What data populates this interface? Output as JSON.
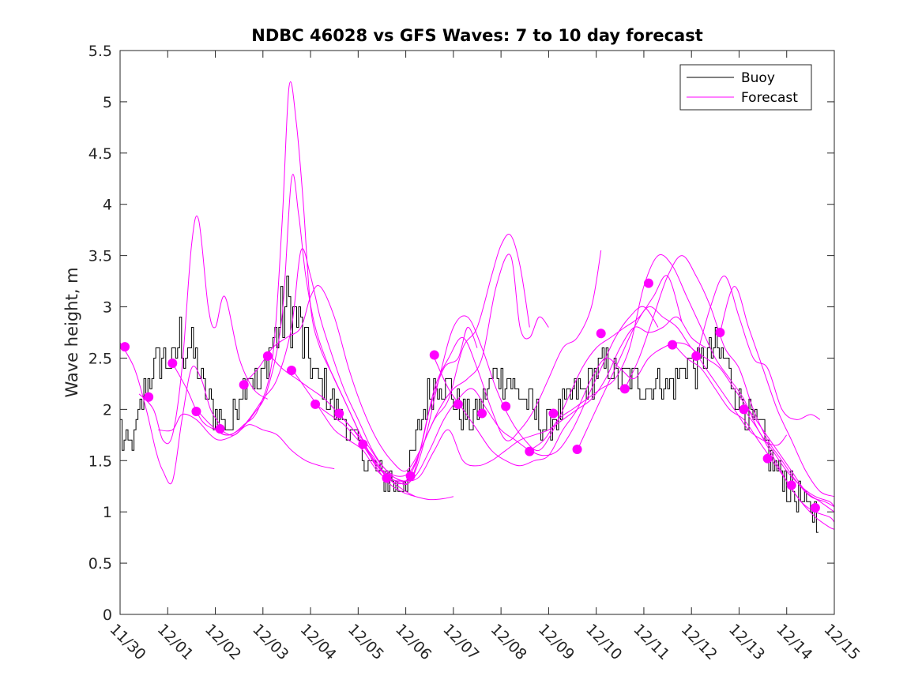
{
  "chart_data": {
    "type": "line",
    "title": "NDBC 46028 vs GFS Waves: 7 to 10 day forecast",
    "xlabel": "",
    "ylabel": "Wave height, m",
    "xlim": [
      0,
      15
    ],
    "ylim": [
      0,
      5.5
    ],
    "x_tick_values": [
      0,
      1,
      2,
      3,
      4,
      5,
      6,
      7,
      8,
      9,
      10,
      11,
      12,
      13,
      14,
      15
    ],
    "x_tick_labels": [
      "11/30",
      "12/01",
      "12/02",
      "12/03",
      "12/04",
      "12/05",
      "12/06",
      "12/07",
      "12/08",
      "12/09",
      "12/10",
      "12/11",
      "12/12",
      "12/13",
      "12/14",
      "12/15"
    ],
    "y_ticks": [
      0,
      0.5,
      1,
      1.5,
      2,
      2.5,
      3,
      3.5,
      4,
      4.5,
      5,
      5.5
    ],
    "y_tick_labels": [
      "0",
      "0.5",
      "1",
      "1.5",
      "2",
      "2.5",
      "3",
      "3.5",
      "4",
      "4.5",
      "5",
      "5.5"
    ],
    "legend": {
      "placement": "top-right",
      "entries": [
        {
          "name": "Buoy",
          "color": "#000000"
        },
        {
          "name": "Forecast",
          "color": "#ff00ff"
        }
      ]
    },
    "colors": {
      "buoy": "#000000",
      "forecast": "#ff00ff"
    },
    "buoy_anchor": {
      "x": [
        0.0,
        0.1,
        0.3,
        0.5,
        0.7,
        0.9,
        1.0,
        1.15,
        1.3,
        1.5,
        1.7,
        1.9,
        2.1,
        2.3,
        2.5,
        2.7,
        2.9,
        3.1,
        3.3,
        3.5,
        3.7,
        3.9,
        4.1,
        4.3,
        4.5,
        4.7,
        4.9,
        5.1,
        5.3,
        5.5,
        5.7,
        5.9,
        6.1,
        6.3,
        6.5,
        6.7,
        6.9,
        7.1,
        7.3,
        7.5,
        7.7,
        7.9,
        8.1,
        8.3,
        8.5,
        8.7,
        8.9,
        9.1,
        9.3,
        9.5,
        9.7,
        9.9,
        10.1,
        10.3,
        10.5,
        10.7,
        10.9,
        11.1,
        11.3,
        11.5,
        11.7,
        11.9,
        12.1,
        12.3,
        12.5,
        12.7,
        12.9,
        13.1,
        13.3,
        13.5,
        13.7,
        13.9,
        14.1,
        14.3,
        14.5,
        14.7
      ],
      "y": [
        1.8,
        1.6,
        1.7,
        2.2,
        2.4,
        2.5,
        2.45,
        2.5,
        2.7,
        2.6,
        2.3,
        2.0,
        1.9,
        1.8,
        2.2,
        2.4,
        2.2,
        2.5,
        2.8,
        3.0,
        2.9,
        2.6,
        2.3,
        2.2,
        2.0,
        1.9,
        1.7,
        1.55,
        1.4,
        1.35,
        1.3,
        1.25,
        1.5,
        1.9,
        2.2,
        2.3,
        2.2,
        2.0,
        1.9,
        1.95,
        2.2,
        2.35,
        2.3,
        2.2,
        2.1,
        1.95,
        1.8,
        1.9,
        2.0,
        2.1,
        2.2,
        2.3,
        2.45,
        2.4,
        2.3,
        2.35,
        2.25,
        2.2,
        2.3,
        2.2,
        2.3,
        2.5,
        2.4,
        2.5,
        2.6,
        2.5,
        2.2,
        2.0,
        1.9,
        1.7,
        1.5,
        1.35,
        1.2,
        1.1,
        1.0,
        1.0
      ]
    },
    "forecasts": [
      {
        "name": "run1",
        "x": [
          0.0,
          0.3,
          0.55,
          0.75,
          0.9,
          1.1,
          1.3,
          1.5,
          1.7,
          1.9,
          2.1
        ],
        "y": [
          2.65,
          2.4,
          2.0,
          1.6,
          1.4,
          1.3,
          1.9,
          2.4,
          2.3,
          2.0,
          1.85
        ]
      },
      {
        "name": "run2",
        "x": [
          0.4,
          0.7,
          0.9,
          1.1,
          1.3,
          1.5,
          1.65,
          1.85,
          2.0,
          2.2,
          2.5,
          2.8,
          3.1
        ],
        "y": [
          2.15,
          2.0,
          1.7,
          1.75,
          2.4,
          3.6,
          3.85,
          3.0,
          2.8,
          3.1,
          2.5,
          2.2,
          2.1
        ]
      },
      {
        "name": "run3",
        "x": [
          0.8,
          1.1,
          1.3,
          1.6,
          1.9,
          2.1,
          2.4,
          2.7,
          3.0,
          3.3,
          3.6,
          3.9,
          4.2,
          4.5
        ],
        "y": [
          1.8,
          1.8,
          1.95,
          1.9,
          1.75,
          1.7,
          1.75,
          1.85,
          1.8,
          1.75,
          1.6,
          1.5,
          1.45,
          1.42
        ]
      },
      {
        "name": "run4",
        "x": [
          1.1,
          1.4,
          1.7,
          2.0,
          2.3,
          2.6,
          2.9,
          3.2,
          3.4,
          3.55,
          3.7,
          3.85,
          4.0,
          4.2,
          4.5,
          4.8,
          5.1,
          5.4,
          5.7,
          6.0,
          6.2
        ],
        "y": [
          2.45,
          2.2,
          1.9,
          1.8,
          1.75,
          1.85,
          2.0,
          2.5,
          3.8,
          5.15,
          4.8,
          4.0,
          3.0,
          2.6,
          2.3,
          2.0,
          1.7,
          1.45,
          1.3,
          1.2,
          1.15
        ]
      },
      {
        "name": "run5",
        "x": [
          1.6,
          1.9,
          2.2,
          2.5,
          2.8,
          3.1,
          3.4,
          3.6,
          3.75,
          3.9,
          4.1,
          4.4,
          4.7,
          5.0,
          5.3,
          5.6,
          5.9,
          6.2,
          6.5,
          6.8,
          7.0
        ],
        "y": [
          2.0,
          1.85,
          1.75,
          1.8,
          1.95,
          2.2,
          2.9,
          4.25,
          3.9,
          3.3,
          2.8,
          2.4,
          2.1,
          1.8,
          1.5,
          1.3,
          1.2,
          1.15,
          1.12,
          1.13,
          1.15
        ]
      },
      {
        "name": "run6",
        "x": [
          2.1,
          2.4,
          2.7,
          3.0,
          3.3,
          3.6,
          3.8,
          4.0,
          4.2,
          4.4,
          4.7,
          5.0,
          5.3,
          5.6,
          5.9,
          6.1,
          6.3,
          6.5,
          6.8,
          7.1,
          7.3,
          7.5
        ],
        "y": [
          1.8,
          1.75,
          1.9,
          2.1,
          2.3,
          2.8,
          3.55,
          3.3,
          2.9,
          2.6,
          2.2,
          1.9,
          1.6,
          1.4,
          1.3,
          1.3,
          1.6,
          2.0,
          2.4,
          2.5,
          2.8,
          2.6
        ]
      },
      {
        "name": "run7",
        "x": [
          2.6,
          2.9,
          3.2,
          3.5,
          3.8,
          4.0,
          4.2,
          4.5,
          4.8,
          5.1,
          5.4,
          5.7,
          6.0,
          6.3,
          6.6,
          6.9,
          7.2,
          7.5,
          7.8,
          8.0,
          8.2,
          8.4,
          8.6
        ],
        "y": [
          2.25,
          2.4,
          2.6,
          2.7,
          2.8,
          3.1,
          3.2,
          2.9,
          2.4,
          2.0,
          1.7,
          1.5,
          1.4,
          1.6,
          1.9,
          2.1,
          2.6,
          2.8,
          3.3,
          3.6,
          3.7,
          3.4,
          2.8
        ]
      },
      {
        "name": "run8",
        "x": [
          3.1,
          3.4,
          3.7,
          4.0,
          4.3,
          4.6,
          4.9,
          5.2,
          5.5,
          5.8,
          6.1,
          6.4,
          6.7,
          7.0,
          7.3,
          7.6,
          7.9,
          8.2,
          8.4,
          8.6,
          8.8,
          9.0
        ],
        "y": [
          2.55,
          2.4,
          2.3,
          2.2,
          2.1,
          1.95,
          1.8,
          1.65,
          1.45,
          1.35,
          1.4,
          1.7,
          2.0,
          2.2,
          2.3,
          2.5,
          3.2,
          3.5,
          2.8,
          2.7,
          2.9,
          2.8
        ]
      },
      {
        "name": "run9",
        "x": [
          3.6,
          3.9,
          4.2,
          4.5,
          4.8,
          5.1,
          5.4,
          5.7,
          6.0,
          6.3,
          6.6,
          6.9,
          7.2,
          7.5,
          7.8,
          8.1,
          8.4,
          8.7,
          9.0,
          9.3,
          9.6,
          9.9,
          10.1
        ],
        "y": [
          2.4,
          2.2,
          2.0,
          1.8,
          1.7,
          1.6,
          1.4,
          1.3,
          1.3,
          1.6,
          2.2,
          2.5,
          2.7,
          2.4,
          2.0,
          1.7,
          1.8,
          2.0,
          2.3,
          2.6,
          2.7,
          3.0,
          3.55
        ]
      },
      {
        "name": "run10",
        "x": [
          4.1,
          4.4,
          4.7,
          5.0,
          5.3,
          5.6,
          5.9,
          6.2,
          6.5,
          6.8,
          7.1,
          7.4,
          7.7,
          8.0,
          8.3,
          8.6,
          8.9,
          9.2,
          9.5,
          9.8,
          10.1,
          10.4,
          10.7,
          11.0,
          11.3
        ],
        "y": [
          2.05,
          1.95,
          1.85,
          1.7,
          1.55,
          1.35,
          1.3,
          1.35,
          1.6,
          1.9,
          2.1,
          2.2,
          2.0,
          1.8,
          1.7,
          1.6,
          1.55,
          1.6,
          1.8,
          2.1,
          2.4,
          2.7,
          2.9,
          3.0,
          2.8
        ]
      },
      {
        "name": "run11",
        "x": [
          4.6,
          4.9,
          5.2,
          5.5,
          5.8,
          6.1,
          6.4,
          6.7,
          7.0,
          7.3,
          7.6,
          7.9,
          8.2,
          8.5,
          8.8,
          9.1,
          9.4,
          9.7,
          10.0,
          10.3,
          10.6,
          10.9,
          11.2,
          11.5,
          11.8
        ],
        "y": [
          1.95,
          1.8,
          1.6,
          1.4,
          1.3,
          1.3,
          1.7,
          2.3,
          2.8,
          2.9,
          2.6,
          2.2,
          1.9,
          1.7,
          1.6,
          1.8,
          2.1,
          2.4,
          2.6,
          2.7,
          2.8,
          2.9,
          3.1,
          3.3,
          2.85
        ]
      },
      {
        "name": "run12",
        "x": [
          5.1,
          5.4,
          5.7,
          6.0,
          6.3,
          6.6,
          6.9,
          7.2,
          7.5,
          7.8,
          8.1,
          8.4,
          8.7,
          9.0,
          9.3,
          9.6,
          9.9,
          10.2,
          10.5,
          10.8,
          11.1,
          11.4,
          11.7,
          12.0,
          12.3
        ],
        "y": [
          1.65,
          1.45,
          1.35,
          1.3,
          1.35,
          1.6,
          1.8,
          1.5,
          1.45,
          1.5,
          1.6,
          1.7,
          1.75,
          1.8,
          1.9,
          2.0,
          2.1,
          2.3,
          2.6,
          2.8,
          2.75,
          2.8,
          2.9,
          2.7,
          2.6
        ]
      },
      {
        "name": "run13",
        "x": [
          6.6,
          6.9,
          7.2,
          7.5,
          7.8,
          8.1,
          8.4,
          8.7,
          9.0,
          9.3,
          9.6,
          9.9,
          10.2,
          10.5,
          10.8,
          11.1,
          11.4,
          11.7,
          12.0,
          12.3,
          12.6,
          12.9,
          13.2,
          13.5,
          13.8,
          14.0
        ],
        "y": [
          2.5,
          2.2,
          2.0,
          1.8,
          1.6,
          1.5,
          1.45,
          1.5,
          1.55,
          1.8,
          2.0,
          2.3,
          2.5,
          2.4,
          2.3,
          2.5,
          2.6,
          2.65,
          2.6,
          2.4,
          2.2,
          2.0,
          1.8,
          1.7,
          1.65,
          1.75
        ]
      },
      {
        "name": "run14",
        "x": [
          8.6,
          8.9,
          9.2,
          9.5,
          9.8,
          10.1,
          10.4,
          10.7,
          11.0,
          11.3,
          11.6,
          11.9,
          12.2,
          12.5,
          12.8,
          13.1,
          13.4,
          13.7,
          14.0,
          14.3,
          14.6,
          14.9,
          15.0
        ],
        "y": [
          1.6,
          1.7,
          1.9,
          2.0,
          2.1,
          2.2,
          2.3,
          2.6,
          3.2,
          3.5,
          3.4,
          3.1,
          2.8,
          2.5,
          2.3,
          2.1,
          1.8,
          1.6,
          1.4,
          1.25,
          1.15,
          1.1,
          1.05
        ]
      },
      {
        "name": "run15",
        "x": [
          9.6,
          9.9,
          10.2,
          10.5,
          10.8,
          11.1,
          11.4,
          11.7,
          12.0,
          12.3,
          12.6,
          12.9,
          13.2,
          13.5,
          13.8,
          14.1,
          14.4,
          14.7,
          15.0
        ],
        "y": [
          1.6,
          1.9,
          2.2,
          2.5,
          2.8,
          3.0,
          2.9,
          2.8,
          2.6,
          2.5,
          2.4,
          2.2,
          2.0,
          1.8,
          1.6,
          1.4,
          1.2,
          1.1,
          1.0
        ]
      },
      {
        "name": "run16",
        "x": [
          10.6,
          10.9,
          11.2,
          11.5,
          11.8,
          12.1,
          12.4,
          12.7,
          13.0,
          13.3,
          13.6,
          13.9,
          14.2,
          14.5,
          14.8,
          15.0
        ],
        "y": [
          2.2,
          2.5,
          2.9,
          3.3,
          3.5,
          3.3,
          3.0,
          2.6,
          2.4,
          2.0,
          1.7,
          1.5,
          1.3,
          1.15,
          1.1,
          1.05
        ]
      },
      {
        "name": "run17",
        "x": [
          11.6,
          11.9,
          12.2,
          12.5,
          12.8,
          13.1,
          13.4,
          13.7,
          14.0,
          14.3,
          14.6,
          14.9,
          15.0
        ],
        "y": [
          2.65,
          2.5,
          2.4,
          2.2,
          2.0,
          1.9,
          1.7,
          1.5,
          1.3,
          1.1,
          1.0,
          0.95,
          0.9
        ]
      },
      {
        "name": "run18",
        "x": [
          12.6,
          12.9,
          13.2,
          13.5,
          13.8,
          14.1,
          14.4,
          14.7,
          15.0
        ],
        "y": [
          2.75,
          3.2,
          2.8,
          2.4,
          2.0,
          1.7,
          1.4,
          1.2,
          1.15
        ]
      },
      {
        "name": "run19",
        "x": [
          12.1,
          12.4,
          12.7,
          13.0,
          13.3,
          13.6,
          13.9,
          14.2,
          14.5,
          14.7
        ],
        "y": [
          2.5,
          3.0,
          3.3,
          2.9,
          2.5,
          2.4,
          2.0,
          1.9,
          1.95,
          1.9
        ]
      },
      {
        "name": "run20",
        "x": [
          13.1,
          13.4,
          13.7,
          14.0,
          14.3,
          14.6,
          14.9,
          15.0
        ],
        "y": [
          2.0,
          1.8,
          1.55,
          1.3,
          1.1,
          0.95,
          0.85,
          0.83
        ]
      }
    ],
    "forecast_markers": {
      "x": [
        0.1,
        0.6,
        1.1,
        1.6,
        2.1,
        2.6,
        3.1,
        3.6,
        4.1,
        4.6,
        5.1,
        5.6,
        6.1,
        6.6,
        7.1,
        7.6,
        8.1,
        8.6,
        9.1,
        9.6,
        10.1,
        10.6,
        11.1,
        11.6,
        12.1,
        12.6,
        13.1,
        13.6,
        14.1,
        14.6
      ],
      "y": [
        2.61,
        2.12,
        2.45,
        1.98,
        1.81,
        2.24,
        2.52,
        2.38,
        2.05,
        1.96,
        1.66,
        1.33,
        1.35,
        2.53,
        2.05,
        1.96,
        2.03,
        1.59,
        1.96,
        1.61,
        2.74,
        2.2,
        3.23,
        2.63,
        2.52,
        2.75,
        2.0,
        1.52,
        1.26,
        1.04
      ]
    }
  }
}
